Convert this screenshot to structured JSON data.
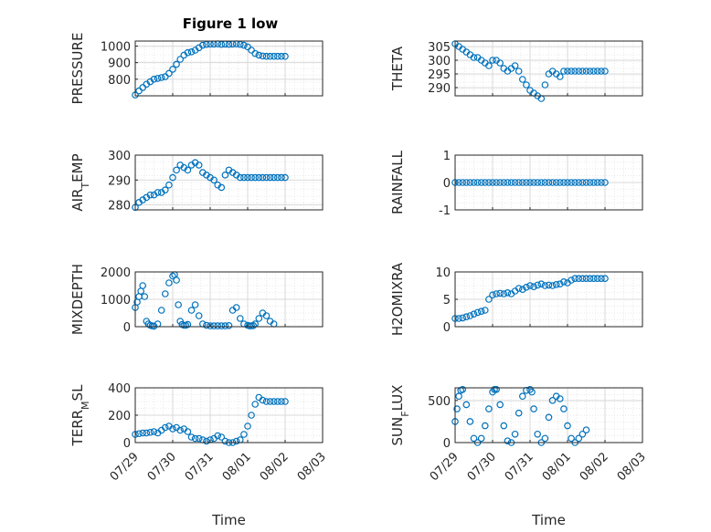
{
  "figure": {
    "title": "Figure 1 low"
  },
  "colors": {
    "marker": "#0072BD",
    "axes": "#262626",
    "grid": "#d9d9d9"
  },
  "chart_data": [
    {
      "type": "scatter",
      "ylabel": "PRESSURE",
      "ylim": [
        700,
        1030
      ],
      "yticks": [
        800,
        900,
        1000
      ],
      "grid": true,
      "series": [
        {
          "x": [
            0.0,
            0.1,
            0.2,
            0.3,
            0.4,
            0.5,
            0.6,
            0.7,
            0.8,
            0.9,
            1.0,
            1.1,
            1.2,
            1.3,
            1.4,
            1.5,
            1.6,
            1.7,
            1.8,
            1.9,
            2.0,
            2.1,
            2.2,
            2.3,
            2.4,
            2.5,
            2.6,
            2.7,
            2.8,
            2.9,
            3.0,
            3.1,
            3.2,
            3.3,
            3.4,
            3.5,
            3.6,
            3.7,
            3.8,
            3.9,
            4.0
          ],
          "y": [
            705,
            730,
            750,
            770,
            785,
            800,
            805,
            810,
            815,
            835,
            860,
            890,
            920,
            945,
            960,
            965,
            975,
            990,
            1005,
            1010,
            1012,
            1012,
            1013,
            1010,
            1012,
            1010,
            1012,
            1013,
            1010,
            1005,
            995,
            975,
            955,
            945,
            940,
            938,
            938,
            938,
            938,
            938,
            938
          ]
        }
      ]
    },
    {
      "type": "scatter",
      "ylabel": "THETA",
      "ylim": [
        287,
        307
      ],
      "yticks": [
        290,
        295,
        300,
        305
      ],
      "grid": true,
      "series": [
        {
          "x": [
            0.0,
            0.1,
            0.2,
            0.3,
            0.4,
            0.5,
            0.6,
            0.7,
            0.8,
            0.9,
            1.0,
            1.1,
            1.2,
            1.3,
            1.4,
            1.5,
            1.6,
            1.7,
            1.8,
            1.9,
            2.0,
            2.1,
            2.2,
            2.3,
            2.4,
            2.5,
            2.6,
            2.7,
            2.8,
            2.9,
            3.0,
            3.1,
            3.2,
            3.3,
            3.4,
            3.5,
            3.6,
            3.7,
            3.8,
            3.9,
            4.0
          ],
          "y": [
            306,
            305,
            304,
            303,
            302,
            301,
            301,
            300,
            299,
            298,
            300,
            300,
            299,
            297,
            296,
            297,
            298,
            296,
            293,
            291,
            289,
            288,
            287,
            286,
            291,
            295,
            296,
            295,
            294,
            296,
            296,
            296,
            296,
            296,
            296,
            296,
            296,
            296,
            296,
            296,
            296
          ]
        }
      ]
    },
    {
      "type": "scatter",
      "ylabel": "AIR_TEMP",
      "ylim": [
        278,
        300
      ],
      "yticks": [
        280,
        290,
        300
      ],
      "grid": true,
      "series": [
        {
          "x": [
            0.0,
            0.1,
            0.2,
            0.3,
            0.4,
            0.5,
            0.6,
            0.7,
            0.8,
            0.9,
            1.0,
            1.1,
            1.2,
            1.3,
            1.4,
            1.5,
            1.6,
            1.7,
            1.8,
            1.9,
            2.0,
            2.1,
            2.2,
            2.3,
            2.4,
            2.5,
            2.6,
            2.7,
            2.8,
            2.9,
            3.0,
            3.1,
            3.2,
            3.3,
            3.4,
            3.5,
            3.6,
            3.7,
            3.8,
            3.9,
            4.0
          ],
          "y": [
            279,
            281,
            282,
            283,
            284,
            284,
            285,
            285,
            286,
            288,
            291,
            294,
            296,
            295,
            294,
            296,
            297,
            296,
            293,
            292,
            291,
            290,
            288,
            287,
            292,
            294,
            293,
            292,
            291,
            291,
            291,
            291,
            291,
            291,
            291,
            291,
            291,
            291,
            291,
            291,
            291
          ]
        }
      ]
    },
    {
      "type": "scatter",
      "ylabel": "RAINFALL",
      "ylim": [
        -1,
        1
      ],
      "yticks": [
        -1,
        0,
        1
      ],
      "grid": true,
      "series": [
        {
          "x": [
            0.0,
            0.1,
            0.2,
            0.3,
            0.4,
            0.5,
            0.6,
            0.7,
            0.8,
            0.9,
            1.0,
            1.1,
            1.2,
            1.3,
            1.4,
            1.5,
            1.6,
            1.7,
            1.8,
            1.9,
            2.0,
            2.1,
            2.2,
            2.3,
            2.4,
            2.5,
            2.6,
            2.7,
            2.8,
            2.9,
            3.0,
            3.1,
            3.2,
            3.3,
            3.4,
            3.5,
            3.6,
            3.7,
            3.8,
            3.9,
            4.0
          ],
          "y": [
            0,
            0,
            0,
            0,
            0,
            0,
            0,
            0,
            0,
            0,
            0,
            0,
            0,
            0,
            0,
            0,
            0,
            0,
            0,
            0,
            0,
            0,
            0,
            0,
            0,
            0,
            0,
            0,
            0,
            0,
            0,
            0,
            0,
            0,
            0,
            0,
            0,
            0,
            0,
            0,
            0
          ]
        }
      ]
    },
    {
      "type": "scatter",
      "ylabel": "MIXDEPTH",
      "ylim": [
        0,
        2000
      ],
      "yticks": [
        0,
        1000,
        2000
      ],
      "grid": true,
      "series": [
        {
          "x": [
            0.0,
            0.05,
            0.1,
            0.15,
            0.2,
            0.25,
            0.3,
            0.35,
            0.4,
            0.45,
            0.5,
            0.6,
            0.7,
            0.8,
            0.9,
            1.0,
            1.05,
            1.1,
            1.15,
            1.2,
            1.25,
            1.3,
            1.35,
            1.4,
            1.5,
            1.6,
            1.7,
            1.8,
            1.9,
            2.0,
            2.1,
            2.2,
            2.3,
            2.4,
            2.5,
            2.6,
            2.7,
            2.8,
            2.9,
            3.0,
            3.05,
            3.1,
            3.15,
            3.2,
            3.3,
            3.4,
            3.5,
            3.6,
            3.7
          ],
          "y": [
            700,
            900,
            1100,
            1300,
            1500,
            1100,
            200,
            100,
            50,
            30,
            20,
            100,
            600,
            1200,
            1600,
            1850,
            1900,
            1700,
            800,
            200,
            80,
            50,
            50,
            80,
            600,
            800,
            400,
            100,
            50,
            30,
            30,
            30,
            30,
            30,
            40,
            600,
            700,
            300,
            100,
            50,
            30,
            30,
            40,
            100,
            300,
            500,
            400,
            200,
            100
          ]
        }
      ]
    },
    {
      "type": "scatter",
      "ylabel": "H2OMIXRA",
      "ylim": [
        0,
        10
      ],
      "yticks": [
        0,
        5,
        10
      ],
      "grid": true,
      "series": [
        {
          "x": [
            0.0,
            0.1,
            0.2,
            0.3,
            0.4,
            0.5,
            0.6,
            0.7,
            0.8,
            0.9,
            1.0,
            1.1,
            1.2,
            1.3,
            1.4,
            1.5,
            1.6,
            1.7,
            1.8,
            1.9,
            2.0,
            2.1,
            2.2,
            2.3,
            2.4,
            2.5,
            2.6,
            2.7,
            2.8,
            2.9,
            3.0,
            3.1,
            3.2,
            3.3,
            3.4,
            3.5,
            3.6,
            3.7,
            3.8,
            3.9,
            4.0
          ],
          "y": [
            1.5,
            1.5,
            1.6,
            1.8,
            2.0,
            2.3,
            2.6,
            2.8,
            3.0,
            5.0,
            5.8,
            6.0,
            6.1,
            6.0,
            6.2,
            6.0,
            6.5,
            7.0,
            6.8,
            7.2,
            7.5,
            7.3,
            7.6,
            7.8,
            7.5,
            7.6,
            7.5,
            7.7,
            7.8,
            8.2,
            8.0,
            8.5,
            8.8,
            8.8,
            8.8,
            8.8,
            8.8,
            8.8,
            8.8,
            8.8,
            8.8
          ]
        }
      ]
    },
    {
      "type": "scatter",
      "ylabel": "TERR_MSL",
      "ylim": [
        0,
        400
      ],
      "yticks": [
        0,
        200,
        400
      ],
      "grid": true,
      "series": [
        {
          "x": [
            0.0,
            0.1,
            0.2,
            0.3,
            0.4,
            0.5,
            0.6,
            0.7,
            0.8,
            0.9,
            1.0,
            1.1,
            1.2,
            1.3,
            1.4,
            1.5,
            1.6,
            1.7,
            1.8,
            1.9,
            2.0,
            2.1,
            2.2,
            2.3,
            2.4,
            2.5,
            2.6,
            2.7,
            2.8,
            2.9,
            3.0,
            3.1,
            3.2,
            3.3,
            3.4,
            3.5,
            3.6,
            3.7,
            3.8,
            3.9,
            4.0
          ],
          "y": [
            60,
            65,
            70,
            70,
            75,
            80,
            70,
            90,
            110,
            120,
            100,
            110,
            90,
            100,
            80,
            40,
            30,
            30,
            20,
            10,
            20,
            30,
            50,
            40,
            10,
            0,
            0,
            10,
            20,
            60,
            120,
            200,
            280,
            330,
            310,
            300,
            300,
            300,
            300,
            300,
            300
          ]
        }
      ]
    },
    {
      "type": "scatter",
      "ylabel": "SUN_FLUX",
      "ylim": [
        0,
        650
      ],
      "yticks": [
        0,
        500
      ],
      "grid": true,
      "series": [
        {
          "x": [
            0.0,
            0.05,
            0.1,
            0.15,
            0.2,
            0.3,
            0.4,
            0.5,
            0.6,
            0.7,
            0.8,
            0.9,
            1.0,
            1.05,
            1.1,
            1.2,
            1.3,
            1.4,
            1.5,
            1.6,
            1.7,
            1.8,
            1.9,
            2.0,
            2.05,
            2.1,
            2.2,
            2.3,
            2.4,
            2.5,
            2.6,
            2.7,
            2.8,
            2.9,
            3.0,
            3.1,
            3.2,
            3.3,
            3.4,
            3.5
          ],
          "y": [
            250,
            400,
            550,
            620,
            630,
            450,
            250,
            50,
            0,
            50,
            200,
            400,
            600,
            630,
            630,
            450,
            200,
            20,
            0,
            100,
            350,
            550,
            620,
            630,
            600,
            400,
            100,
            0,
            50,
            300,
            500,
            550,
            520,
            400,
            200,
            50,
            0,
            50,
            100,
            150
          ]
        }
      ]
    }
  ],
  "x_axis": {
    "label": "Time",
    "ticks": [
      "07/29",
      "07/30",
      "07/31",
      "08/01",
      "08/02",
      "08/03"
    ],
    "xlim": [
      0,
      5
    ]
  }
}
